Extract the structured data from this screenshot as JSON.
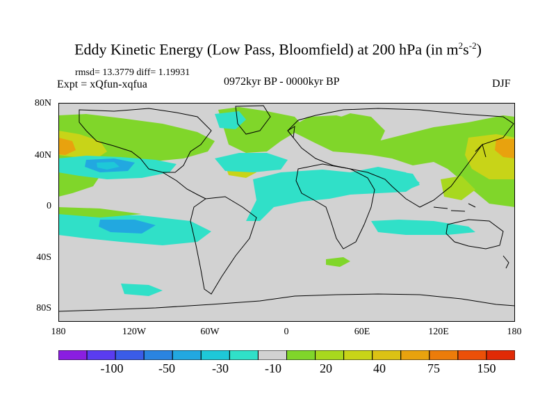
{
  "title": {
    "main": "Eddy Kinetic Energy (Low Pass, Bloomfield) at 200 hPa (in m",
    "sup1": "2",
    "mid": "s",
    "sup2": "-2",
    "end": ")"
  },
  "stats": "rmsd= 13.3779 diff= 1.19931",
  "expt": "Expt = xQfun-xqfua",
  "period": "0972kyr BP - 0000kyr BP",
  "season": "DJF",
  "lat_labels": [
    "80N",
    "40N",
    "0",
    "40S",
    "80S"
  ],
  "lon_labels": [
    "180",
    "120W",
    "60W",
    "0",
    "60E",
    "120E",
    "180"
  ],
  "colorbar": {
    "colors": [
      "#8a1ee0",
      "#5a3cf0",
      "#3a5ce8",
      "#2a84e0",
      "#22a8e0",
      "#1ec8d8",
      "#30e0c8",
      "#d2d2d2",
      "#80d62a",
      "#a8d81e",
      "#c8d418",
      "#dcc214",
      "#e8a20e",
      "#ec7c0a",
      "#ec5008",
      "#e02a06"
    ],
    "labels": [
      "-100",
      "-50",
      "-30",
      "-10",
      "20",
      "40",
      "75",
      "150"
    ]
  },
  "map_colors": {
    "background": "#d2d2d2",
    "green": "#80d62a",
    "lightgreen": "#a8d81e",
    "yellow": "#c8d418",
    "orange": "#e8a20e",
    "cyan": "#30e0c8",
    "teal": "#1ec8d8",
    "blue": "#22a8e0",
    "deepblue": "#2a84e0"
  }
}
